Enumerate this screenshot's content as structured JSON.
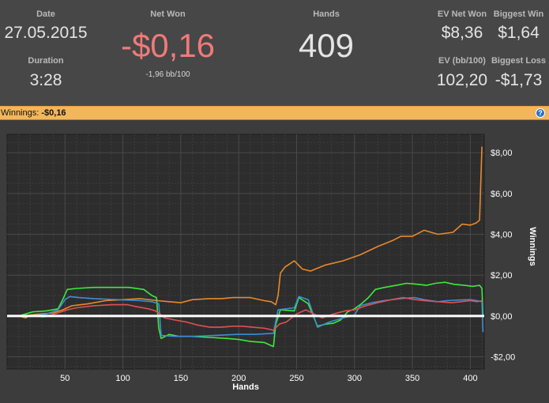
{
  "stats": {
    "date_label": "Date",
    "date_value": "27.05.2015",
    "duration_label": "Duration",
    "duration_value": "3:28",
    "net_won_label": "Net Won",
    "net_won_value": "-$0,16",
    "bb_per_100": "-1,96 bb/100",
    "hands_label": "Hands",
    "hands_value": "409",
    "ev_net_won_label": "EV Net Won",
    "ev_net_won_value": "$8,36",
    "biggest_win_label": "Biggest Win",
    "biggest_win_value": "$1,64",
    "ev_bb_label": "EV (bb/100)",
    "ev_bb_value": "102,20",
    "biggest_loss_label": "Biggest Loss",
    "biggest_loss_value": "-$1,73"
  },
  "banner": {
    "label": "Winnings:",
    "value": "-$0,16",
    "help_icon": "?"
  },
  "colors": {
    "net_won_negative": "#f07a78",
    "banner_bg": "#f2b65c",
    "orange": "#e8892c",
    "green": "#3ee83e",
    "blue": "#3d8fd6",
    "red": "#e05050",
    "zero_line": "#ffffff"
  },
  "chart_data": {
    "type": "line",
    "xlabel": "Hands",
    "ylabel": "Winnings",
    "xlim": [
      0,
      412
    ],
    "ylim": [
      -2.6,
      8.9
    ],
    "x_ticks": [
      50,
      100,
      150,
      200,
      250,
      300,
      350,
      400
    ],
    "x_tick_labels": [
      "50",
      "100",
      "150",
      "200",
      "250",
      "300",
      "350",
      "400"
    ],
    "y_ticks": [
      -2,
      0,
      2,
      4,
      6,
      8
    ],
    "y_tick_labels": [
      "-$2,00",
      "$0,00",
      "$2,00",
      "$4,00",
      "$6,00",
      "$8,00"
    ],
    "grid": true,
    "series": [
      {
        "color": "orange",
        "points": [
          [
            0,
            0
          ],
          [
            10,
            0
          ],
          [
            16,
            -0.1
          ],
          [
            20,
            0.05
          ],
          [
            28,
            0.1
          ],
          [
            40,
            0.15
          ],
          [
            48,
            0.3
          ],
          [
            56,
            0.5
          ],
          [
            70,
            0.6
          ],
          [
            85,
            0.75
          ],
          [
            100,
            0.8
          ],
          [
            115,
            0.85
          ],
          [
            130,
            0.75
          ],
          [
            140,
            0.7
          ],
          [
            150,
            0.65
          ],
          [
            160,
            0.8
          ],
          [
            175,
            0.85
          ],
          [
            185,
            0.85
          ],
          [
            195,
            0.9
          ],
          [
            210,
            0.9
          ],
          [
            222,
            0.75
          ],
          [
            228,
            0.7
          ],
          [
            232,
            0.55
          ],
          [
            234,
            1.0
          ],
          [
            236,
            2.1
          ],
          [
            240,
            2.4
          ],
          [
            248,
            2.7
          ],
          [
            255,
            2.3
          ],
          [
            262,
            2.2
          ],
          [
            275,
            2.5
          ],
          [
            290,
            2.7
          ],
          [
            305,
            3.0
          ],
          [
            320,
            3.4
          ],
          [
            333,
            3.7
          ],
          [
            340,
            3.9
          ],
          [
            350,
            3.9
          ],
          [
            360,
            4.2
          ],
          [
            372,
            4.0
          ],
          [
            385,
            4.1
          ],
          [
            393,
            4.5
          ],
          [
            400,
            4.45
          ],
          [
            405,
            4.55
          ],
          [
            408,
            4.7
          ],
          [
            409,
            6.5
          ],
          [
            410,
            8.3
          ]
        ]
      },
      {
        "color": "green",
        "points": [
          [
            0,
            0
          ],
          [
            10,
            0
          ],
          [
            16,
            0.1
          ],
          [
            22,
            0.2
          ],
          [
            34,
            0.25
          ],
          [
            44,
            0.35
          ],
          [
            48,
            0.8
          ],
          [
            52,
            1.3
          ],
          [
            60,
            1.35
          ],
          [
            75,
            1.4
          ],
          [
            90,
            1.4
          ],
          [
            105,
            1.4
          ],
          [
            118,
            1.3
          ],
          [
            125,
            1.0
          ],
          [
            129,
            0.9
          ],
          [
            131,
            -0.6
          ],
          [
            133,
            -1.1
          ],
          [
            140,
            -0.9
          ],
          [
            148,
            -1.0
          ],
          [
            160,
            -1.0
          ],
          [
            175,
            -1.05
          ],
          [
            190,
            -1.1
          ],
          [
            200,
            -1.15
          ],
          [
            210,
            -1.25
          ],
          [
            222,
            -1.3
          ],
          [
            230,
            -1.5
          ],
          [
            232,
            -0.4
          ],
          [
            236,
            0.3
          ],
          [
            248,
            0.25
          ],
          [
            252,
            0.9
          ],
          [
            260,
            0.6
          ],
          [
            268,
            -0.5
          ],
          [
            275,
            -0.4
          ],
          [
            282,
            -0.35
          ],
          [
            288,
            -0.2
          ],
          [
            294,
            0.2
          ],
          [
            300,
            0.35
          ],
          [
            306,
            0.6
          ],
          [
            312,
            0.9
          ],
          [
            318,
            1.3
          ],
          [
            326,
            1.4
          ],
          [
            336,
            1.5
          ],
          [
            345,
            1.6
          ],
          [
            355,
            1.55
          ],
          [
            362,
            1.5
          ],
          [
            370,
            1.6
          ],
          [
            378,
            1.65
          ],
          [
            386,
            1.55
          ],
          [
            395,
            1.5
          ],
          [
            402,
            1.45
          ],
          [
            408,
            1.5
          ],
          [
            410,
            1.35
          ],
          [
            411,
            -0.05
          ]
        ]
      },
      {
        "color": "blue",
        "points": [
          [
            0,
            0
          ],
          [
            20,
            0
          ],
          [
            34,
            0.1
          ],
          [
            44,
            0.3
          ],
          [
            50,
            0.8
          ],
          [
            54,
            0.95
          ],
          [
            62,
            0.9
          ],
          [
            75,
            0.85
          ],
          [
            95,
            0.8
          ],
          [
            115,
            0.75
          ],
          [
            125,
            0.7
          ],
          [
            131,
            0.6
          ],
          [
            133,
            -0.95
          ],
          [
            145,
            -1.0
          ],
          [
            160,
            -1.0
          ],
          [
            180,
            -0.95
          ],
          [
            200,
            -0.9
          ],
          [
            215,
            -0.9
          ],
          [
            230,
            -0.85
          ],
          [
            234,
            0.3
          ],
          [
            248,
            0.4
          ],
          [
            252,
            0.95
          ],
          [
            260,
            0.8
          ],
          [
            268,
            -0.55
          ],
          [
            278,
            -0.3
          ],
          [
            290,
            -0.1
          ],
          [
            300,
            0.05
          ],
          [
            305,
            0.5
          ],
          [
            315,
            0.65
          ],
          [
            325,
            0.75
          ],
          [
            340,
            0.85
          ],
          [
            352,
            0.9
          ],
          [
            360,
            0.8
          ],
          [
            366,
            0.75
          ],
          [
            372,
            0.7
          ],
          [
            380,
            0.75
          ],
          [
            390,
            0.78
          ],
          [
            400,
            0.8
          ],
          [
            406,
            0.75
          ],
          [
            410,
            0.7
          ],
          [
            411,
            -0.8
          ]
        ]
      },
      {
        "color": "red",
        "points": [
          [
            0,
            0
          ],
          [
            20,
            0
          ],
          [
            32,
            -0.05
          ],
          [
            44,
            0.15
          ],
          [
            52,
            0.3
          ],
          [
            60,
            0.4
          ],
          [
            75,
            0.5
          ],
          [
            90,
            0.55
          ],
          [
            104,
            0.55
          ],
          [
            112,
            0.45
          ],
          [
            122,
            0.35
          ],
          [
            128,
            0.25
          ],
          [
            132,
            0.1
          ],
          [
            136,
            -0.1
          ],
          [
            145,
            -0.2
          ],
          [
            155,
            -0.3
          ],
          [
            165,
            -0.45
          ],
          [
            175,
            -0.55
          ],
          [
            185,
            -0.55
          ],
          [
            195,
            -0.5
          ],
          [
            203,
            -0.5
          ],
          [
            212,
            -0.55
          ],
          [
            222,
            -0.6
          ],
          [
            230,
            -0.7
          ],
          [
            235,
            -0.4
          ],
          [
            241,
            -0.3
          ],
          [
            250,
            0.1
          ],
          [
            258,
            0.3
          ],
          [
            265,
            0.1
          ],
          [
            272,
            -0.1
          ],
          [
            282,
            0.1
          ],
          [
            292,
            0.25
          ],
          [
            300,
            0.3
          ],
          [
            310,
            0.5
          ],
          [
            320,
            0.65
          ],
          [
            332,
            0.8
          ],
          [
            342,
            0.9
          ],
          [
            352,
            0.8
          ],
          [
            360,
            0.75
          ],
          [
            372,
            0.7
          ],
          [
            384,
            0.65
          ],
          [
            392,
            0.7
          ],
          [
            400,
            0.75
          ],
          [
            406,
            0.7
          ],
          [
            410,
            0.75
          ]
        ]
      },
      {
        "color": "zero_line",
        "points": [
          [
            0,
            0
          ],
          [
            412,
            0
          ]
        ]
      }
    ]
  }
}
